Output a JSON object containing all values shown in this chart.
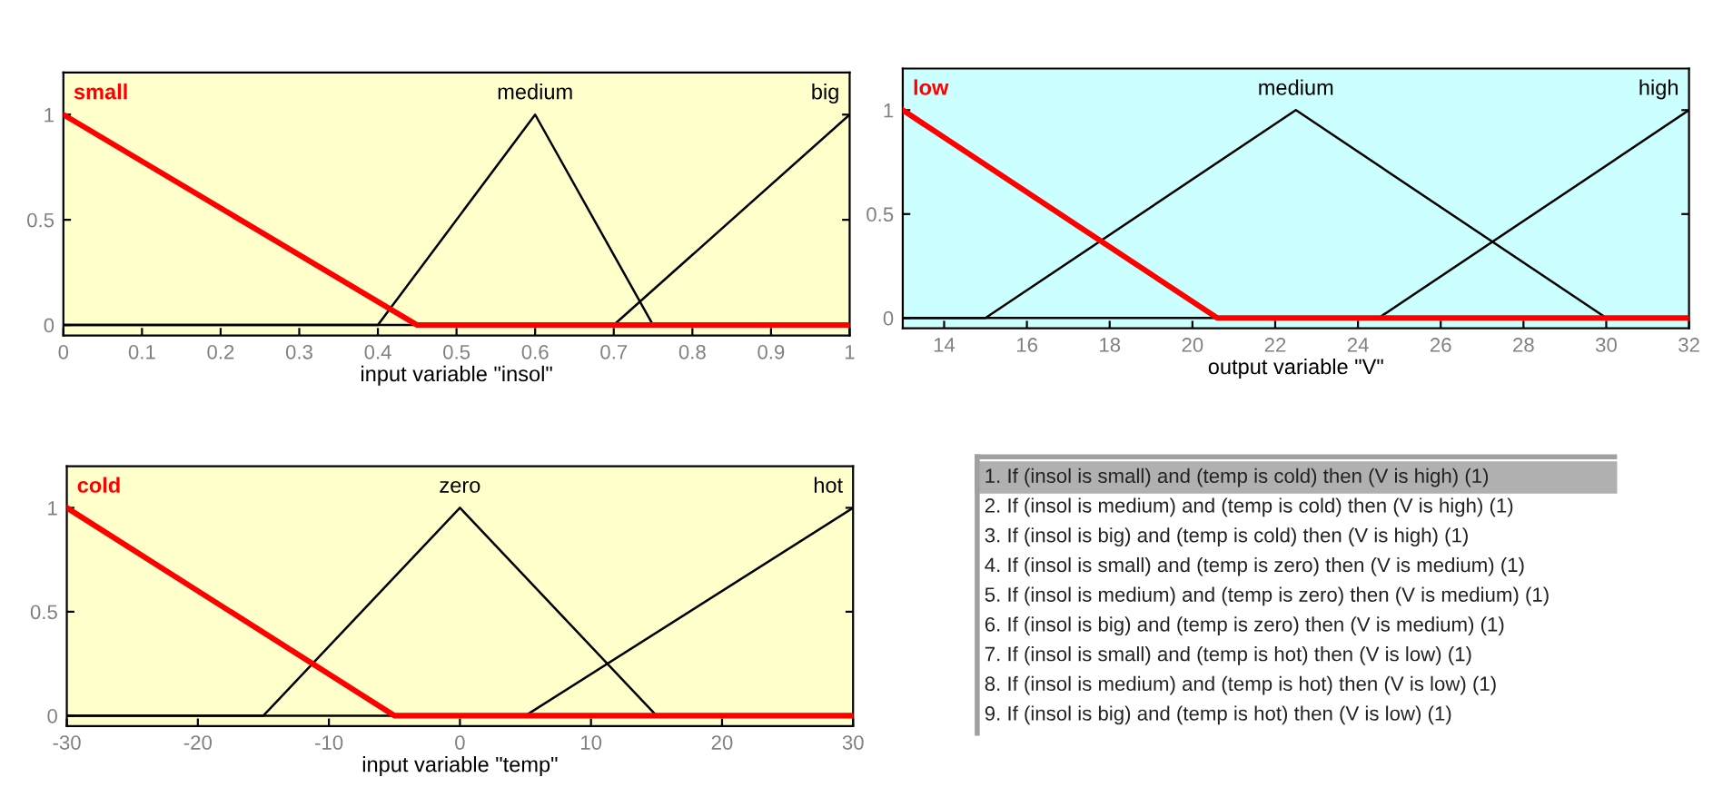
{
  "chart_data": [
    {
      "type": "line",
      "xlabel": "input variable \"insol\"",
      "xlim": [
        0,
        1
      ],
      "ylim": [
        -0.05,
        1.2
      ],
      "xticks": [
        0,
        0.1,
        0.2,
        0.3,
        0.4,
        0.5,
        0.6,
        0.7,
        0.8,
        0.9,
        1
      ],
      "yticks": [
        0,
        0.5,
        1
      ],
      "grid": false,
      "legend": "top",
      "series": [
        {
          "name": "medium",
          "color": "#000000",
          "x": [
            0,
            0.4,
            0.6,
            0.75,
            1
          ],
          "values": [
            0,
            0,
            1,
            0,
            0
          ]
        },
        {
          "name": "big",
          "color": "#000000",
          "x": [
            0,
            0.7,
            1
          ],
          "values": [
            0,
            0,
            1
          ]
        },
        {
          "name": "small",
          "color": "#ff0000",
          "x": [
            0,
            0.45,
            1
          ],
          "values": [
            1,
            0,
            0
          ]
        }
      ]
    },
    {
      "type": "line",
      "xlabel": "output variable \"V\"",
      "xlim": [
        13,
        32
      ],
      "ylim": [
        -0.05,
        1.2
      ],
      "xticks": [
        14,
        16,
        18,
        20,
        22,
        24,
        26,
        28,
        30,
        32
      ],
      "yticks": [
        0,
        0.5,
        1
      ],
      "grid": false,
      "legend": "top",
      "series": [
        {
          "name": "medium",
          "color": "#000000",
          "x": [
            13,
            15,
            22.5,
            30,
            32
          ],
          "values": [
            0,
            0,
            1,
            0,
            0
          ]
        },
        {
          "name": "high",
          "color": "#000000",
          "x": [
            13,
            24.5,
            32
          ],
          "values": [
            0,
            0,
            1
          ]
        },
        {
          "name": "low",
          "color": "#ff0000",
          "x": [
            13,
            20.6,
            32
          ],
          "values": [
            1,
            0,
            0
          ]
        }
      ]
    },
    {
      "type": "line",
      "xlabel": "input variable \"temp\"",
      "xlim": [
        -30,
        30
      ],
      "ylim": [
        -0.05,
        1.2
      ],
      "xticks": [
        -30,
        -20,
        -10,
        0,
        10,
        20,
        30
      ],
      "yticks": [
        0,
        0.5,
        1
      ],
      "grid": false,
      "legend": "top",
      "series": [
        {
          "name": "zero",
          "color": "#000000",
          "x": [
            -30,
            -15,
            0,
            15,
            30
          ],
          "values": [
            0,
            0,
            1,
            0,
            0
          ]
        },
        {
          "name": "hot",
          "color": "#000000",
          "x": [
            -30,
            5,
            30
          ],
          "values": [
            0,
            0,
            1
          ]
        },
        {
          "name": "cold",
          "color": "#ff0000",
          "x": [
            -30,
            -5,
            30
          ],
          "values": [
            1,
            0,
            0
          ]
        }
      ]
    },
    {
      "type": "other",
      "annotations": [
        "1. If (insol is small) and (temp is cold) then (V is high) (1)",
        "2. If (insol is medium) and (temp is cold) then (V is high) (1)",
        "3. If (insol is big) and (temp is cold) then (V is high) (1)",
        "4. If (insol is small) and (temp is zero) then (V is medium) (1)",
        "5. If (insol is medium) and (temp is zero) then (V is medium) (1)",
        "6. If (insol is big) and (temp is zero) then (V is medium) (1)",
        "7. If (insol is small) and (temp is hot) then (V is low) (1)",
        "8. If (insol is medium) and (temp is hot) then (V is low) (1)",
        "9. If (insol is big) and (temp is hot) then (V is low) (1)"
      ]
    }
  ]
}
